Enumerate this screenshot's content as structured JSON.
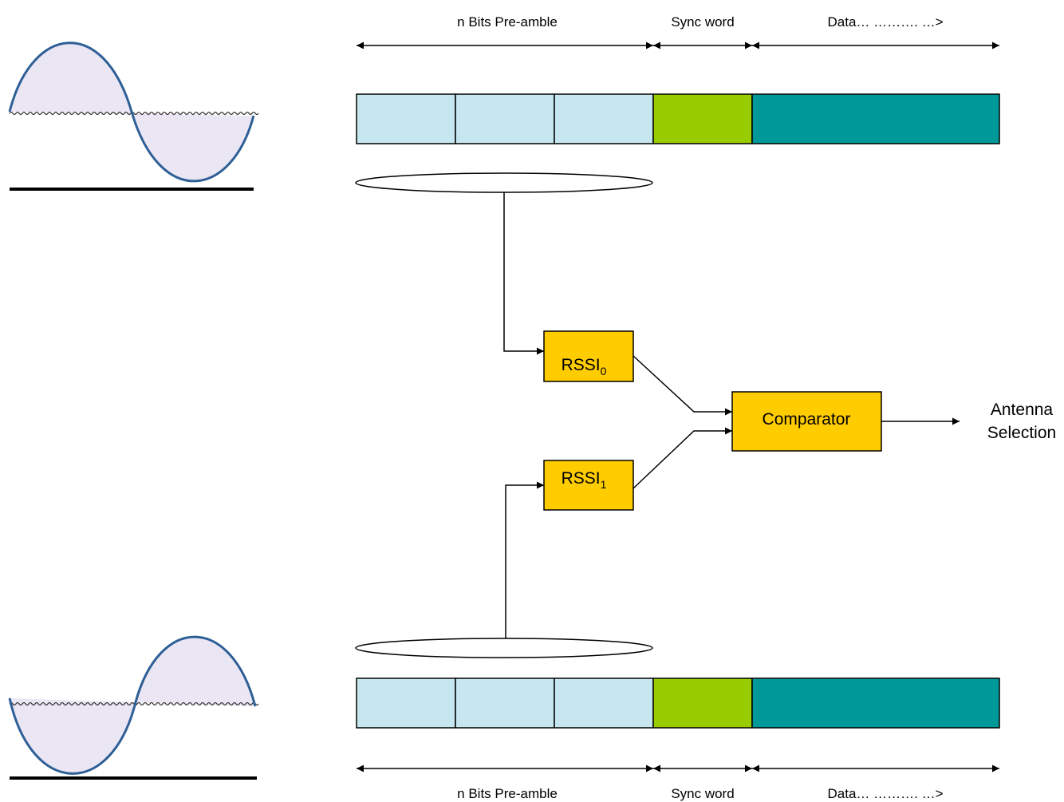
{
  "colors": {
    "preamble": "#c6e7ef",
    "sync": "#99cc00",
    "data": "#009999",
    "block": "#ffcc00",
    "wave": "#2e5f96",
    "wave_fill": "#ebe6f4"
  },
  "top_frame": {
    "preamble_label": "n Bits Pre-amble",
    "sync_label": "Sync word",
    "data_label": "Data… ………. …>"
  },
  "bottom_frame": {
    "preamble_label": "n Bits Pre-amble",
    "sync_label": "Sync word",
    "data_label": "Data… ………. …>"
  },
  "rssi0": {
    "base": "RSSI",
    "sub": "0"
  },
  "rssi1": {
    "base": "RSSI",
    "sub": "1"
  },
  "comparator": {
    "label": "Comparator"
  },
  "output": {
    "line1": "Antenna",
    "line2": "Selection"
  }
}
